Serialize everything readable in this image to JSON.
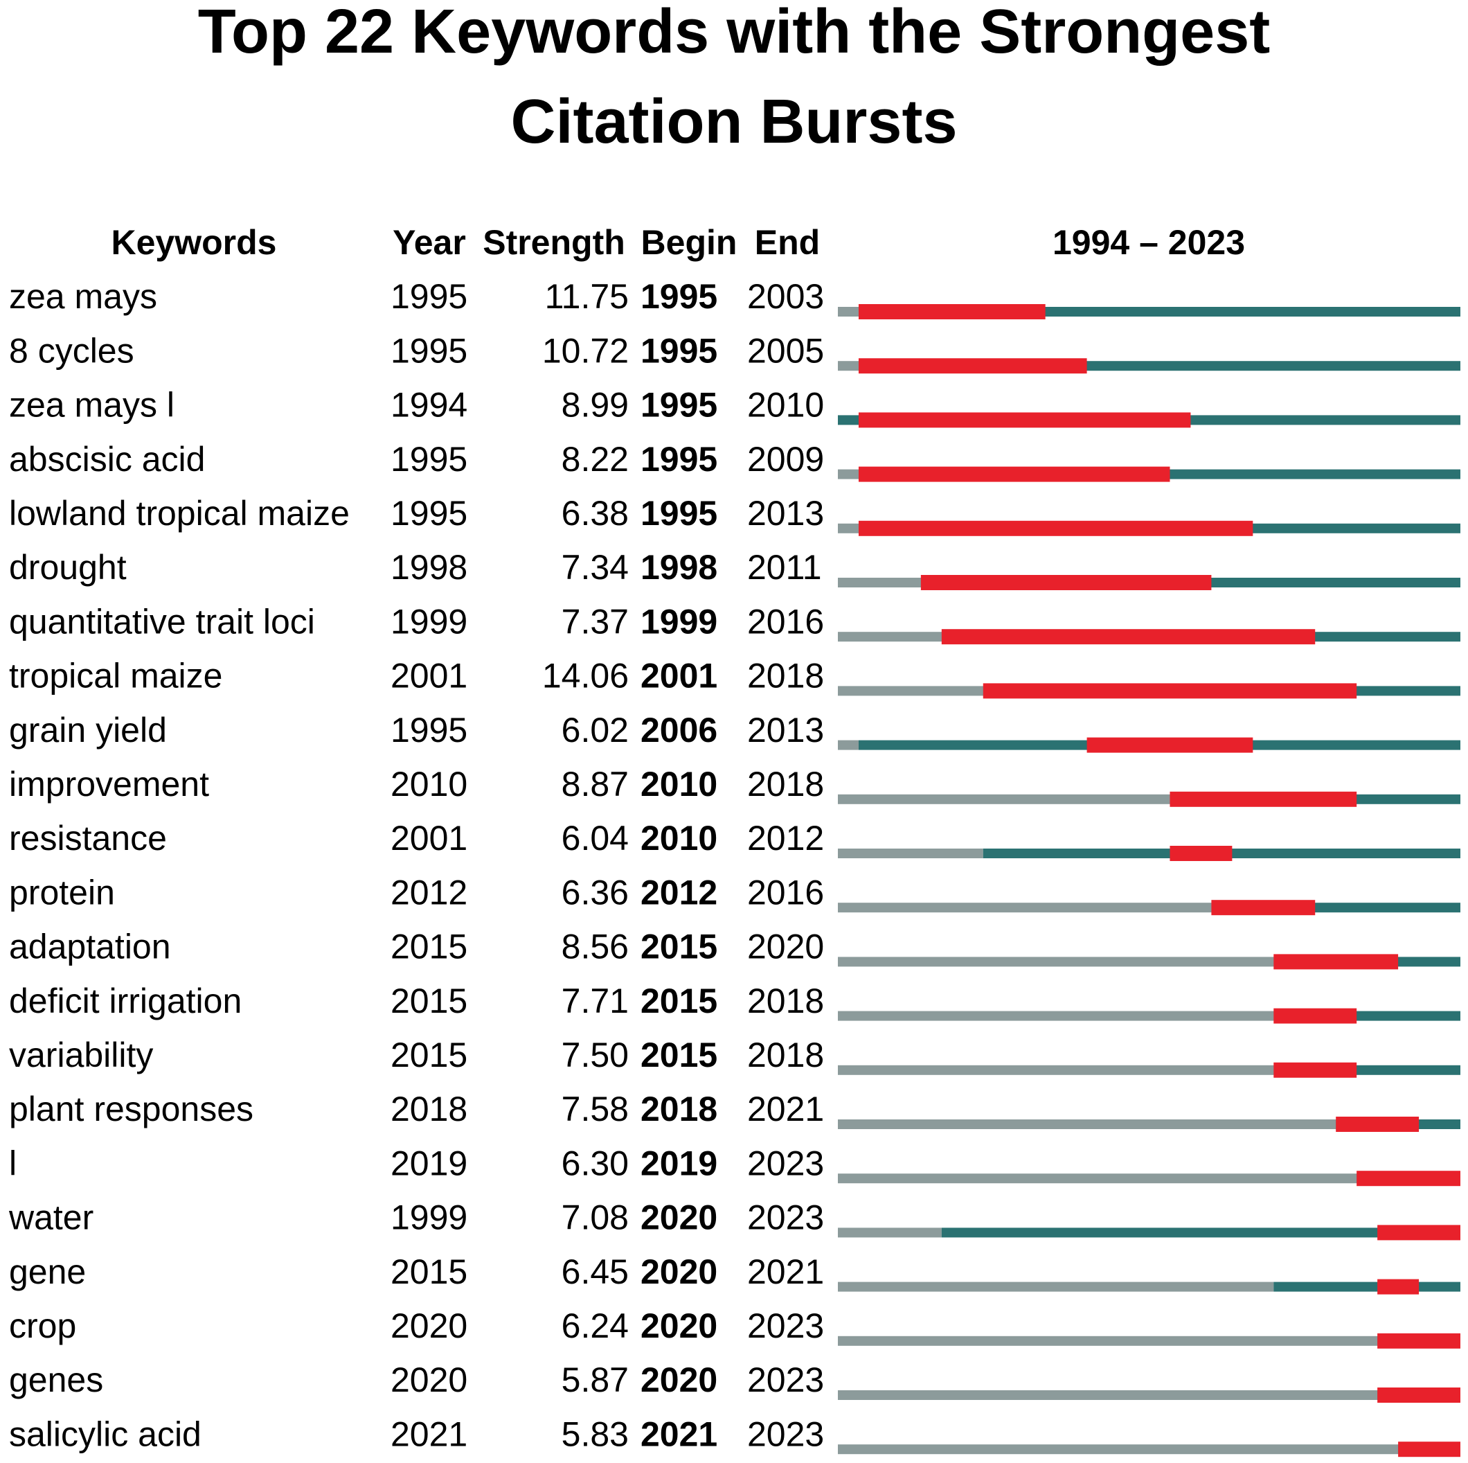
{
  "chart_data": {
    "type": "burst",
    "title": [
      "Top 22 Keywords with the Strongest",
      "Citation Bursts"
    ],
    "columns": [
      "Keywords",
      "Year",
      "Strength",
      "Begin",
      "End"
    ],
    "range_label": "1994 – 2023",
    "xlim": [
      1994,
      2023
    ],
    "colors": {
      "before": "#8c9b9b",
      "active": "#2b7272",
      "burst": "#e8212b"
    },
    "rows": [
      {
        "keyword": "zea mays",
        "year": 1995,
        "strength": "11.75",
        "begin": 1995,
        "end": 2003
      },
      {
        "keyword": "8 cycles",
        "year": 1995,
        "strength": "10.72",
        "begin": 1995,
        "end": 2005
      },
      {
        "keyword": "zea mays l",
        "year": 1994,
        "strength": "8.99",
        "begin": 1995,
        "end": 2010
      },
      {
        "keyword": "abscisic acid",
        "year": 1995,
        "strength": "8.22",
        "begin": 1995,
        "end": 2009
      },
      {
        "keyword": "lowland tropical maize",
        "year": 1995,
        "strength": "6.38",
        "begin": 1995,
        "end": 2013
      },
      {
        "keyword": "drought",
        "year": 1998,
        "strength": "7.34",
        "begin": 1998,
        "end": 2011
      },
      {
        "keyword": "quantitative trait loci",
        "year": 1999,
        "strength": "7.37",
        "begin": 1999,
        "end": 2016
      },
      {
        "keyword": "tropical maize",
        "year": 2001,
        "strength": "14.06",
        "begin": 2001,
        "end": 2018
      },
      {
        "keyword": "grain yield",
        "year": 1995,
        "strength": "6.02",
        "begin": 2006,
        "end": 2013
      },
      {
        "keyword": "improvement",
        "year": 2010,
        "strength": "8.87",
        "begin": 2010,
        "end": 2018
      },
      {
        "keyword": "resistance",
        "year": 2001,
        "strength": "6.04",
        "begin": 2010,
        "end": 2012
      },
      {
        "keyword": "protein",
        "year": 2012,
        "strength": "6.36",
        "begin": 2012,
        "end": 2016
      },
      {
        "keyword": "adaptation",
        "year": 2015,
        "strength": "8.56",
        "begin": 2015,
        "end": 2020
      },
      {
        "keyword": "deficit irrigation",
        "year": 2015,
        "strength": "7.71",
        "begin": 2015,
        "end": 2018
      },
      {
        "keyword": "variability",
        "year": 2015,
        "strength": "7.50",
        "begin": 2015,
        "end": 2018
      },
      {
        "keyword": "plant responses",
        "year": 2018,
        "strength": "7.58",
        "begin": 2018,
        "end": 2021
      },
      {
        "keyword": "l",
        "year": 2019,
        "strength": "6.30",
        "begin": 2019,
        "end": 2023
      },
      {
        "keyword": "water",
        "year": 1999,
        "strength": "7.08",
        "begin": 2020,
        "end": 2023
      },
      {
        "keyword": "gene",
        "year": 2015,
        "strength": "6.45",
        "begin": 2020,
        "end": 2021
      },
      {
        "keyword": "crop",
        "year": 2020,
        "strength": "6.24",
        "begin": 2020,
        "end": 2023
      },
      {
        "keyword": "genes",
        "year": 2020,
        "strength": "5.87",
        "begin": 2020,
        "end": 2023
      },
      {
        "keyword": "salicylic acid",
        "year": 2021,
        "strength": "5.83",
        "begin": 2021,
        "end": 2023
      }
    ]
  }
}
